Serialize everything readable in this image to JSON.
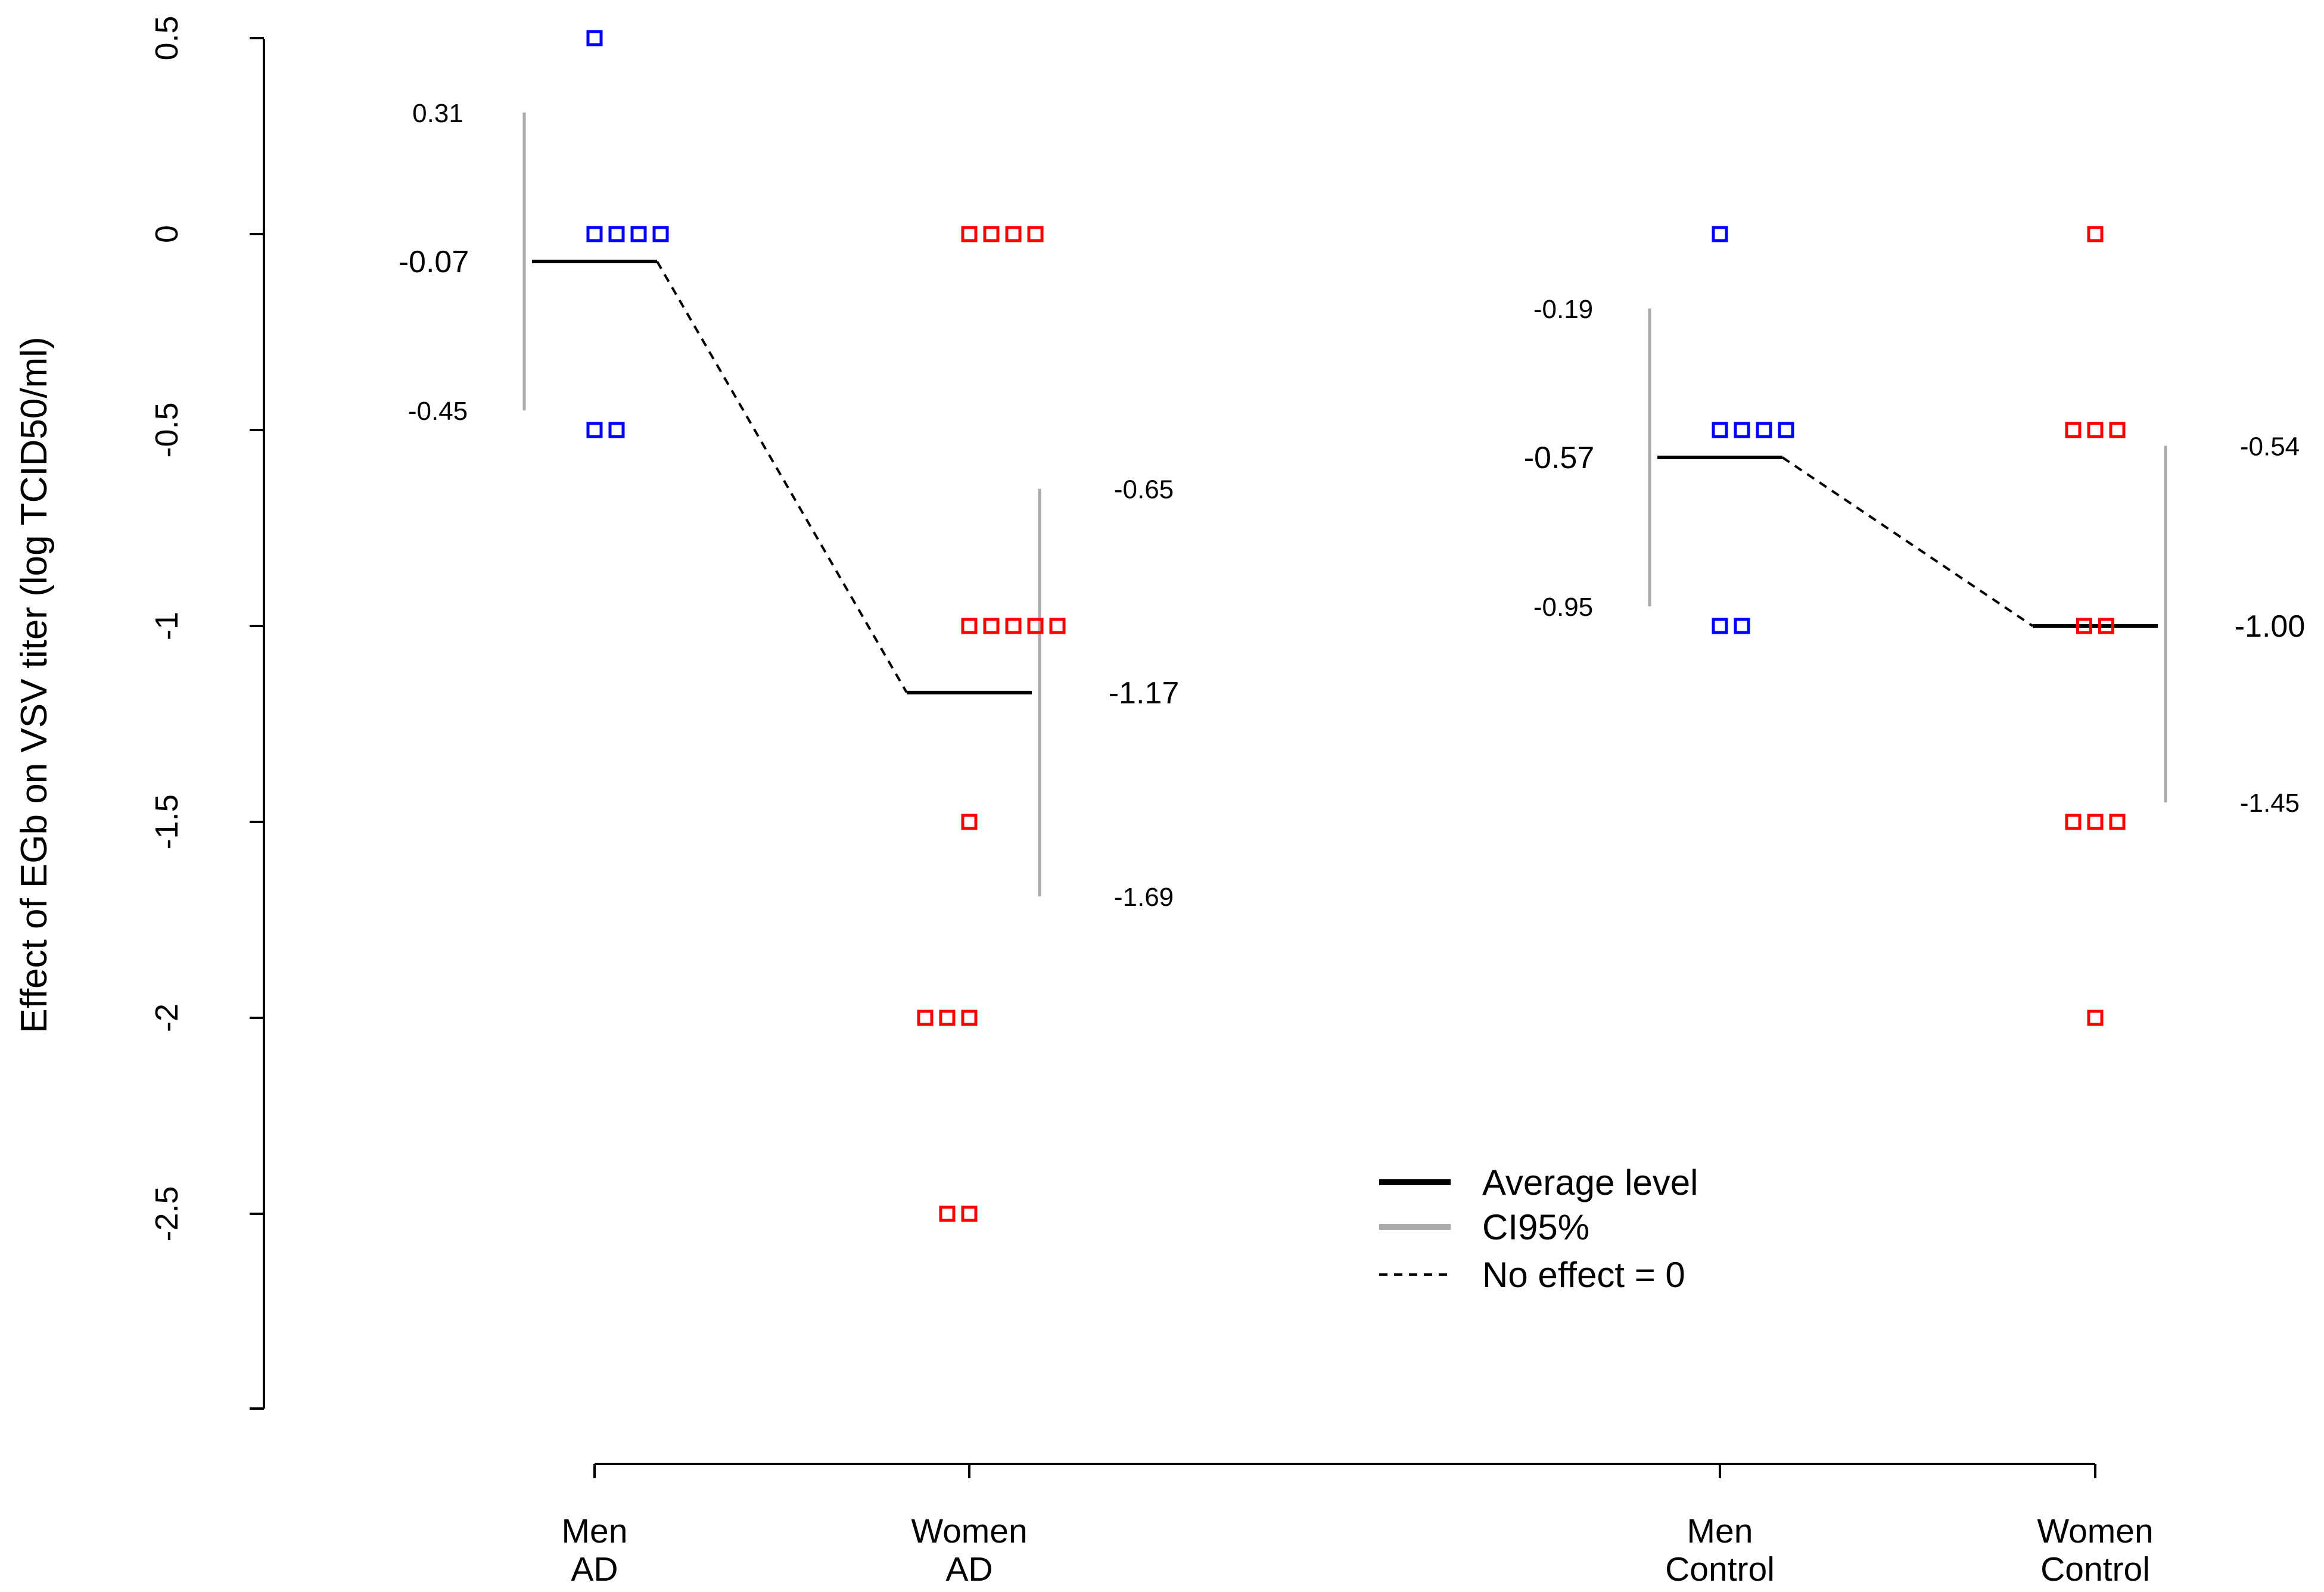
{
  "chart_data": {
    "type": "scatter",
    "title": "",
    "xlabel": "",
    "ylabel": "Effect of EGb on VSV titer (log TCID50/ml)",
    "ylim": [
      -3,
      0.5
    ],
    "yticks": [
      0.5,
      0,
      -0.5,
      -1,
      -1.5,
      -2,
      -2.5
    ],
    "ytick_labels": [
      "0.5",
      "0",
      "-0.5",
      "-1",
      "-1.5",
      "-2",
      "-2.5"
    ],
    "categories": [
      {
        "line1": "Men",
        "line2": "AD"
      },
      {
        "line1": "Women",
        "line2": "AD"
      },
      {
        "line1": "Men",
        "line2": "Control"
      },
      {
        "line1": "Women",
        "line2": "Control"
      }
    ],
    "groups": [
      {
        "name": "Men AD",
        "color": "#0000ff",
        "points": [
          0.5,
          0,
          0,
          0,
          0,
          -0.5,
          -0.5
        ],
        "mean": -0.07,
        "ci_low": -0.45,
        "ci_high": 0.31,
        "mean_label": "-0.07",
        "ci_low_label": "-0.45",
        "ci_high_label": "0.31",
        "label_side": "left"
      },
      {
        "name": "Women AD",
        "color": "#ff0000",
        "points": [
          0,
          0,
          0,
          0,
          -1,
          -1,
          -1,
          -1,
          -1,
          -1.5,
          -2,
          -2,
          -2,
          -2.5,
          -2.5
        ],
        "mean": -1.17,
        "ci_low": -1.69,
        "ci_high": -0.65,
        "mean_label": "-1.17",
        "ci_low_label": "-1.69",
        "ci_high_label": "-0.65",
        "label_side": "right"
      },
      {
        "name": "Men Control",
        "color": "#0000ff",
        "points": [
          0,
          -0.5,
          -0.5,
          -0.5,
          -0.5,
          -1,
          -1
        ],
        "mean": -0.57,
        "ci_low": -0.95,
        "ci_high": -0.19,
        "mean_label": "-0.57",
        "ci_low_label": "-0.95",
        "ci_high_label": "-0.19",
        "label_side": "left"
      },
      {
        "name": "Women Control",
        "color": "#ff0000",
        "points": [
          0,
          -0.5,
          -0.5,
          -0.5,
          -1,
          -1,
          -1.5,
          -1.5,
          -1.5,
          -2
        ],
        "mean": -1.0,
        "ci_low": -1.45,
        "ci_high": -0.54,
        "mean_label": "-1.00",
        "ci_low_label": "-1.45",
        "ci_high_label": "-0.54",
        "label_side": "right"
      }
    ],
    "connectors": [
      [
        0,
        1
      ],
      [
        2,
        3
      ]
    ],
    "legend": {
      "position": "bottom-center",
      "entries": [
        {
          "label": "Average level",
          "style": "solid",
          "color": "#000000"
        },
        {
          "label": "CI95%",
          "style": "solid",
          "color": "#aaaaaa"
        },
        {
          "label": "No effect = 0",
          "style": "dashed",
          "color": "#000000"
        }
      ]
    }
  }
}
